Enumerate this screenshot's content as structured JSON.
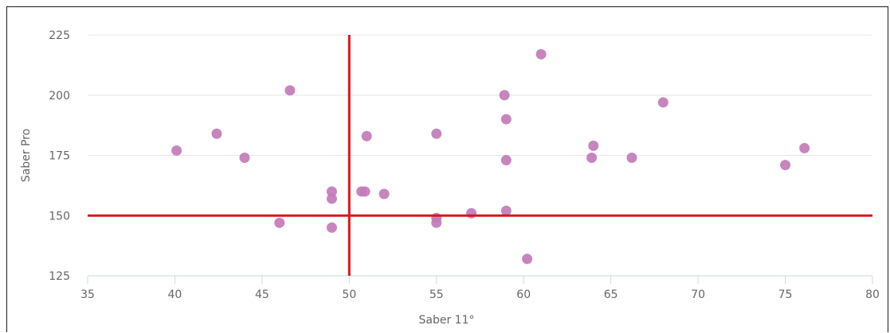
{
  "chart_data": {
    "type": "scatter",
    "title": "",
    "xlabel": "Saber 11°",
    "ylabel": "Saber Pro",
    "xlim": [
      35,
      80
    ],
    "ylim": [
      125,
      225
    ],
    "xticks": [
      35,
      40,
      45,
      50,
      55,
      60,
      65,
      70,
      75,
      80
    ],
    "yticks": [
      125,
      150,
      175,
      200,
      225
    ],
    "grid": "horizontal",
    "point_color": "#c27bb8",
    "reference_line_color": "#d9161c",
    "reference_lines": {
      "vertical_x": 50,
      "horizontal_y": 150
    },
    "series": [
      {
        "points": [
          {
            "x": 40.1,
            "y": 177
          },
          {
            "x": 42.4,
            "y": 184
          },
          {
            "x": 44.0,
            "y": 174
          },
          {
            "x": 46.0,
            "y": 147
          },
          {
            "x": 46.6,
            "y": 202
          },
          {
            "x": 49.0,
            "y": 160
          },
          {
            "x": 49.0,
            "y": 157
          },
          {
            "x": 49.0,
            "y": 145
          },
          {
            "x": 50.7,
            "y": 160
          },
          {
            "x": 50.9,
            "y": 160
          },
          {
            "x": 51.0,
            "y": 183
          },
          {
            "x": 52.0,
            "y": 159
          },
          {
            "x": 55.0,
            "y": 184
          },
          {
            "x": 55.0,
            "y": 149
          },
          {
            "x": 55.0,
            "y": 147
          },
          {
            "x": 57.0,
            "y": 151
          },
          {
            "x": 58.9,
            "y": 200
          },
          {
            "x": 59.0,
            "y": 190
          },
          {
            "x": 59.0,
            "y": 173
          },
          {
            "x": 59.0,
            "y": 152
          },
          {
            "x": 60.2,
            "y": 132
          },
          {
            "x": 61.0,
            "y": 217
          },
          {
            "x": 63.9,
            "y": 174
          },
          {
            "x": 64.0,
            "y": 179
          },
          {
            "x": 66.2,
            "y": 174
          },
          {
            "x": 68.0,
            "y": 197
          },
          {
            "x": 75.0,
            "y": 171
          },
          {
            "x": 76.1,
            "y": 178
          }
        ]
      }
    ]
  }
}
